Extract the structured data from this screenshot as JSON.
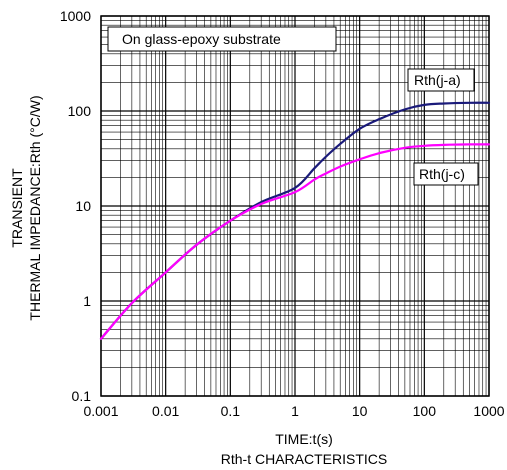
{
  "chart_data": {
    "type": "line",
    "title": "Rth-t CHARACTERISTICS",
    "xlabel": "TIME:t(s)",
    "ylabel_line1": "TRANSIENT",
    "ylabel_line2": "THERMAL IMPEDANCE:Rth  (°C/W)",
    "x_scale": "log",
    "y_scale": "log",
    "xlim": [
      0.001,
      1000
    ],
    "ylim": [
      0.1,
      1000
    ],
    "grid": true,
    "x_tick_labels": [
      "0.001",
      "0.01",
      "0.1",
      "1",
      "10",
      "100",
      "1000"
    ],
    "y_tick_labels": [
      "0.1",
      "1",
      "10",
      "100",
      "1000"
    ],
    "annotation": "On glass-epoxy substrate",
    "series": [
      {
        "name": "Rth(j-a)",
        "color": "#1a1a7a",
        "x": [
          0.001,
          0.003,
          0.01,
          0.03,
          0.1,
          0.3,
          1,
          2,
          3,
          5,
          10,
          20,
          50,
          100,
          200,
          500,
          1000
        ],
        "y": [
          0.4,
          0.95,
          2.0,
          3.9,
          7.0,
          11.0,
          15.5,
          25,
          33,
          45,
          65,
          82,
          104,
          116,
          120,
          122,
          122
        ]
      },
      {
        "name": "Rth(j-c)",
        "color": "#ff00ff",
        "x": [
          0.001,
          0.003,
          0.01,
          0.03,
          0.1,
          0.3,
          1,
          2,
          3,
          5,
          10,
          20,
          50,
          100,
          200,
          500,
          1000
        ],
        "y": [
          0.4,
          0.95,
          2.0,
          3.9,
          7.0,
          10.5,
          14.0,
          19,
          22,
          26,
          31,
          36,
          41,
          43,
          44,
          44.5,
          44.5
        ]
      }
    ]
  }
}
